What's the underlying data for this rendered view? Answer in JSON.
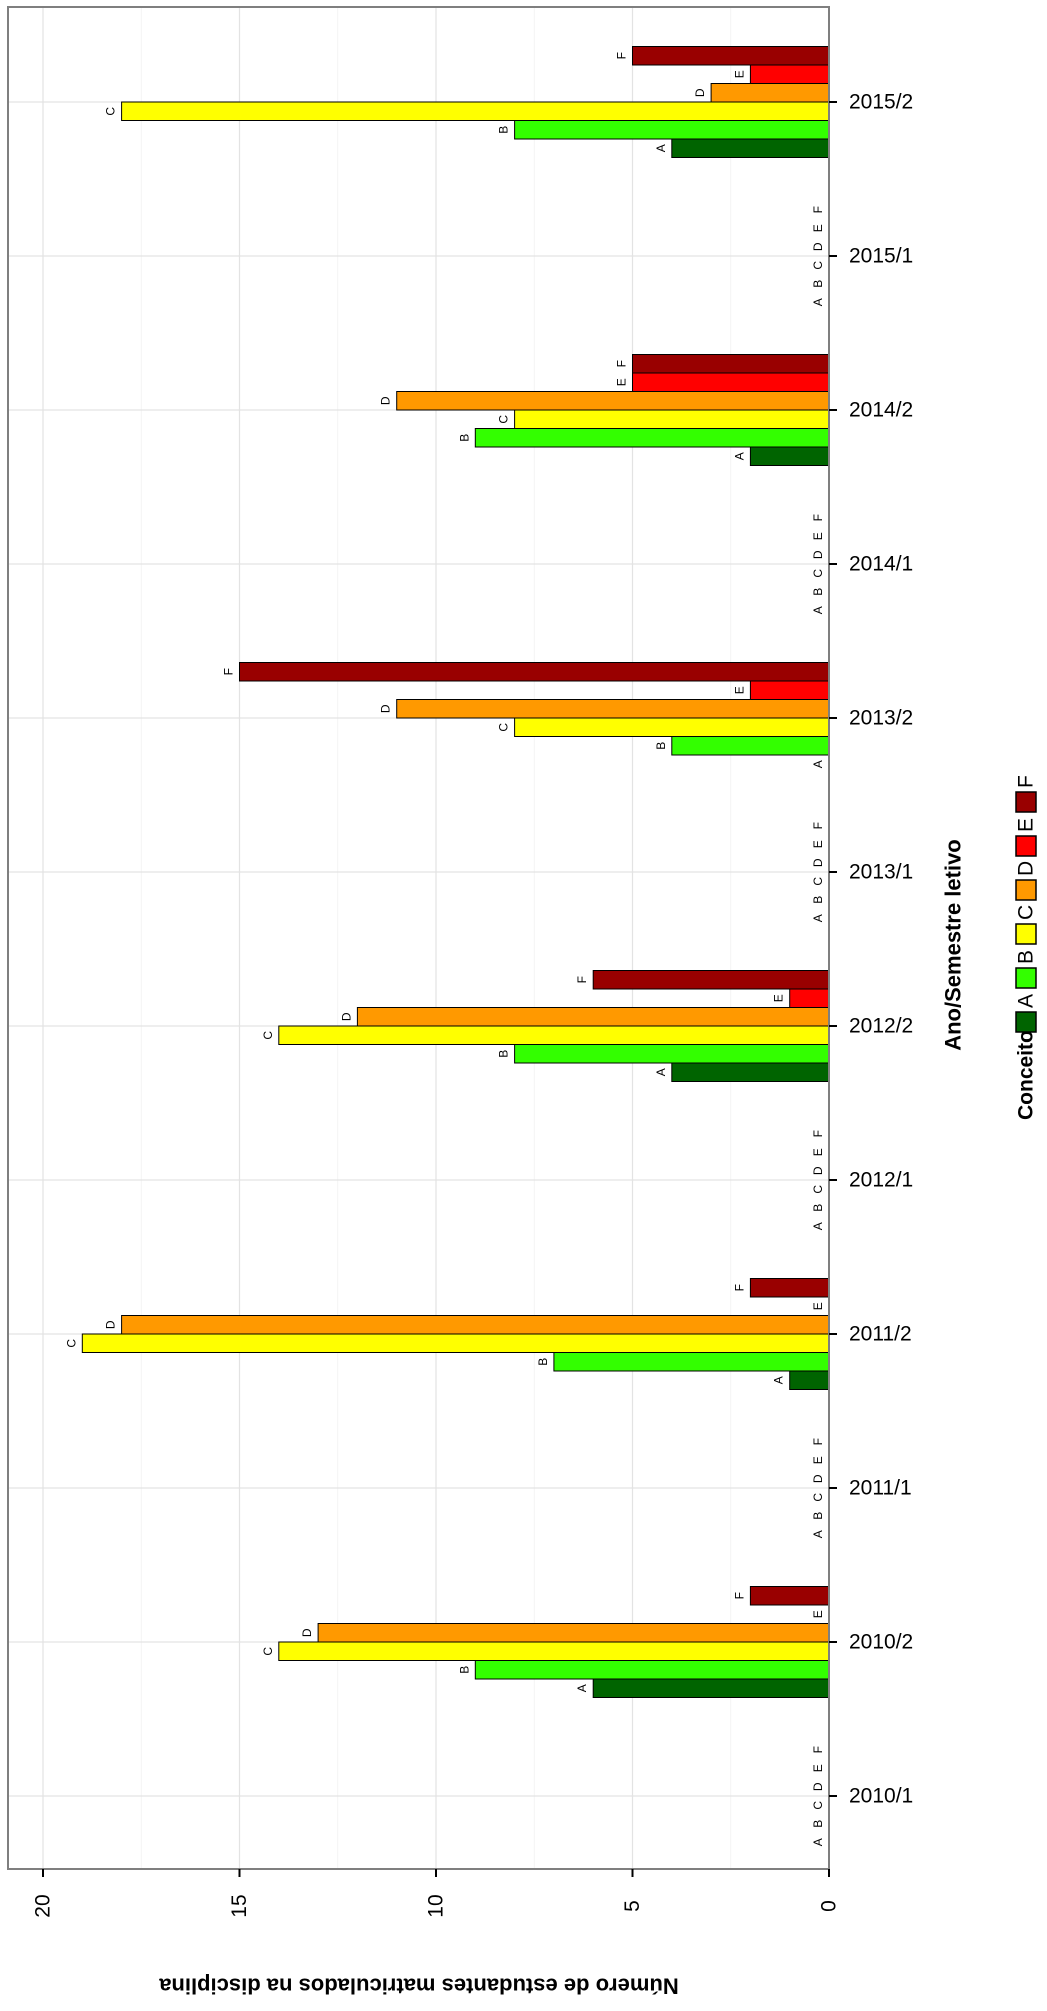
{
  "chart_data": {
    "type": "bar",
    "orientation": "horizontal",
    "xlabel": "Ano/Semestre letivo",
    "ylabel": "Número de estudantes matriculados na disciplina",
    "ylim": [
      0,
      20
    ],
    "y_ticks": [
      "0",
      "5",
      "10",
      "15",
      "20"
    ],
    "grid": true,
    "legend": {
      "title": "Conceito",
      "placement": "bottom",
      "entries": [
        "A",
        "B",
        "C",
        "D",
        "E",
        "F"
      ]
    },
    "categories": [
      "2010/1",
      "2010/2",
      "2011/1",
      "2011/2",
      "2012/1",
      "2012/2",
      "2013/1",
      "2013/2",
      "2014/1",
      "2014/2",
      "2015/1",
      "2015/2"
    ],
    "series": [
      {
        "name": "A",
        "color": "#006400",
        "values": [
          0,
          6,
          0,
          1,
          0,
          4,
          0,
          0,
          0,
          2,
          0,
          4
        ]
      },
      {
        "name": "B",
        "color": "#33ff00",
        "values": [
          0,
          9,
          0,
          7,
          0,
          8,
          0,
          4,
          0,
          9,
          0,
          8
        ]
      },
      {
        "name": "C",
        "color": "#ffff00",
        "values": [
          0,
          14,
          0,
          19,
          0,
          14,
          0,
          8,
          0,
          8,
          0,
          18
        ]
      },
      {
        "name": "D",
        "color": "#ff9900",
        "values": [
          0,
          13,
          0,
          18,
          0,
          12,
          0,
          11,
          0,
          11,
          0,
          3
        ]
      },
      {
        "name": "E",
        "color": "#ff0000",
        "values": [
          0,
          0,
          0,
          0,
          0,
          1,
          0,
          2,
          0,
          5,
          0,
          2
        ]
      },
      {
        "name": "F",
        "color": "#990000",
        "values": [
          0,
          2,
          0,
          2,
          0,
          6,
          0,
          15,
          0,
          5,
          0,
          5
        ]
      }
    ]
  }
}
